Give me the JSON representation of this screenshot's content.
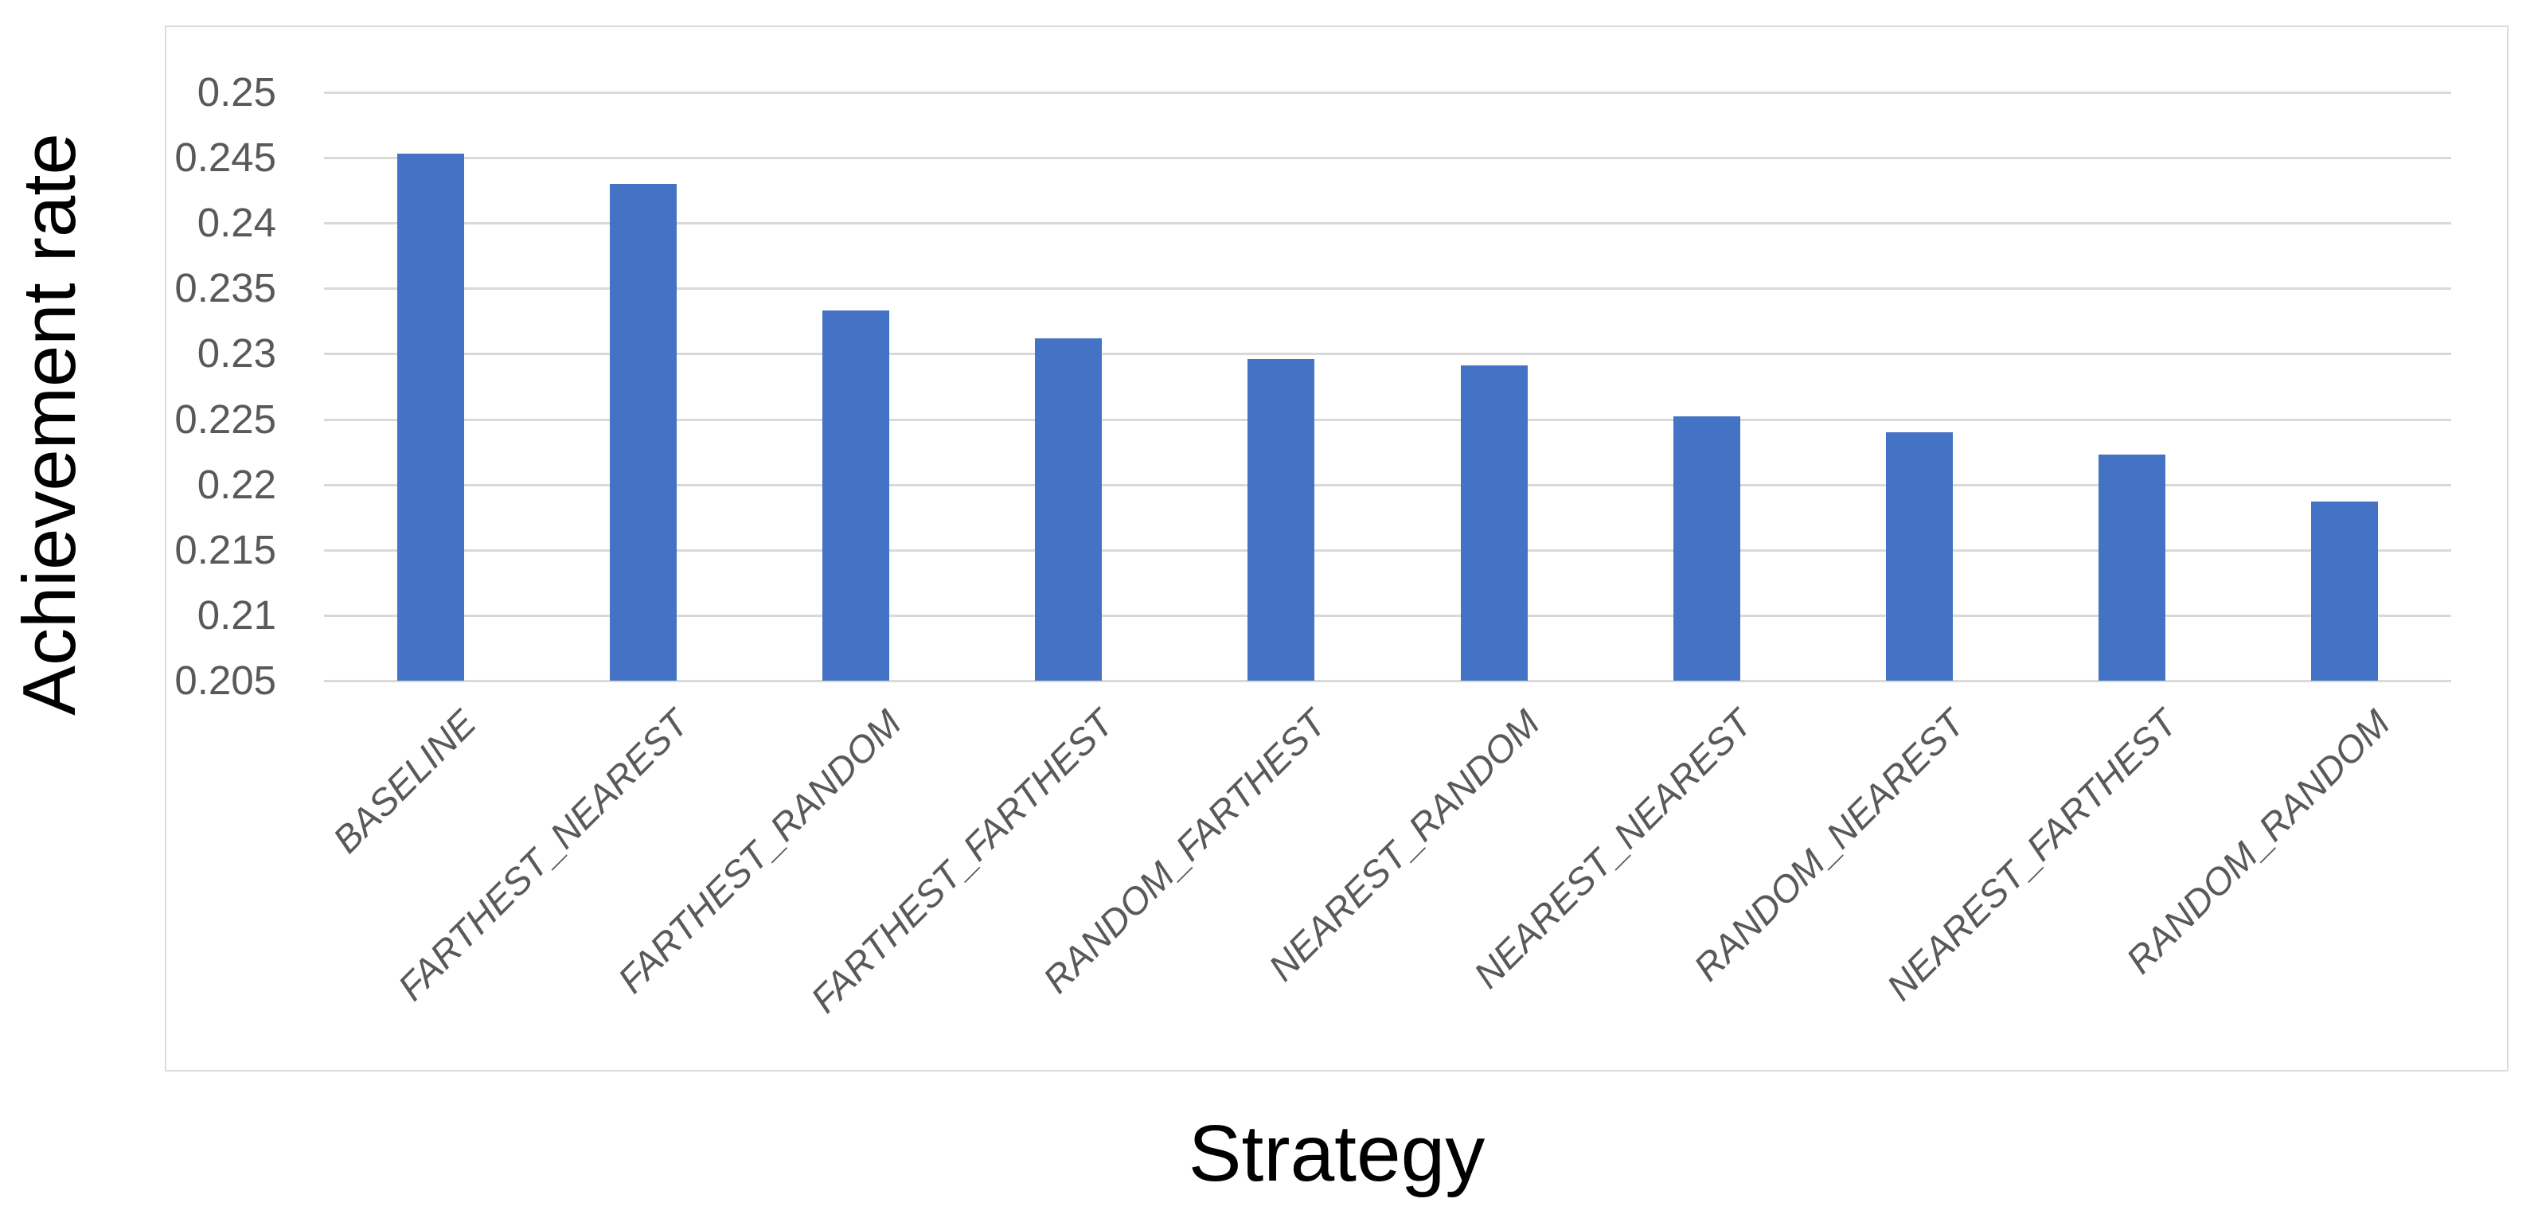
{
  "chart_data": {
    "type": "bar",
    "title": "",
    "xlabel": "Strategy",
    "ylabel": "Achievement rate",
    "categories": [
      "BASELINE",
      "FARTHEST_NEAREST",
      "FARTHEST_RANDOM",
      "FARTHEST_FARTHEST",
      "RANDOM_FARTHEST",
      "NEAREST_RANDOM",
      "NEAREST_NEAREST",
      "RANDOM_NEAREST",
      "NEAREST_FARTHEST",
      "RANDOM_RANDOM"
    ],
    "values": [
      0.2453,
      0.243,
      0.2333,
      0.2312,
      0.2296,
      0.2291,
      0.2252,
      0.224,
      0.2223,
      0.2187
    ],
    "series_name": "Achievement rate",
    "ylim": [
      0.205,
      0.25
    ],
    "ytick_step": 0.005,
    "yticks": [
      "0.205",
      "0.21",
      "0.215",
      "0.22",
      "0.225",
      "0.23",
      "0.235",
      "0.24",
      "0.245",
      "0.25"
    ],
    "grid": true,
    "legend": null,
    "bar_color": "#4472c4",
    "gridline_color": "#d9d9d9",
    "tick_label_color": "#595959",
    "axis_title_color": "#000000",
    "frame_border_color": "#dcdcdc",
    "background_color": "#ffffff"
  }
}
